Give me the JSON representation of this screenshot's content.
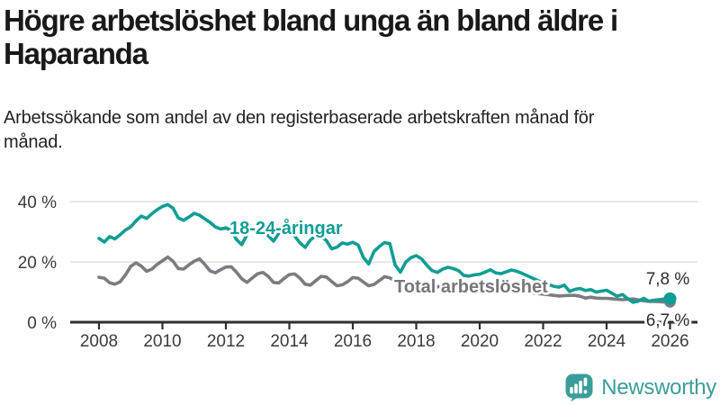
{
  "title": "Högre arbetslöshet bland unga än bland äldre i Haparanda",
  "subtitle": "Arbetssökande som andel av den registerbaserade arbetskraften månad för månad.",
  "footer": {
    "brand": "Newsworthy"
  },
  "colors": {
    "young_line": "#0f9d94",
    "total_line": "#7c7c80",
    "total_label": "#76767b",
    "axis": "#2f2f2f",
    "grid": "#dadada",
    "logo_teal": "#3b9d9a"
  },
  "chart_data": {
    "type": "line",
    "title": "Högre arbetslöshet bland unga än bland äldre i Haparanda",
    "xlabel": "",
    "ylabel": "",
    "x_start_year": 2008,
    "x_step_years": 0.1666667,
    "x_end_year": 2026,
    "xlim": [
      2007.1,
      2026.9
    ],
    "ylim": [
      0,
      42
    ],
    "grid": "horizontal",
    "x_tick_years": [
      2008,
      2010,
      2012,
      2014,
      2016,
      2018,
      2020,
      2022,
      2024,
      2026
    ],
    "x_tick_labels": [
      "2008",
      "2010",
      "2012",
      "2014",
      "2016",
      "2018",
      "2020",
      "2022",
      "2024",
      "2026"
    ],
    "y_ticks": [
      {
        "value": 0,
        "label": "0 %"
      },
      {
        "value": 20,
        "label": "20 %"
      },
      {
        "value": 40,
        "label": "40 %"
      }
    ],
    "series": [
      {
        "name": "18-24-åringar",
        "color": "#0f9d94",
        "end_label": "7,8 %",
        "end_value": 7.8,
        "values": [
          27.8,
          26.6,
          28.4,
          27.6,
          29.0,
          30.6,
          31.6,
          33.6,
          35.2,
          34.4,
          36.0,
          37.3,
          38.4,
          39.0,
          37.8,
          34.6,
          33.8,
          34.9,
          36.1,
          35.5,
          34.3,
          33.1,
          31.6,
          30.9,
          31.3,
          30.4,
          27.4,
          25.7,
          29.0,
          31.2,
          32.2,
          30.6,
          28.7,
          26.9,
          29.5,
          30.7,
          30.0,
          28.6,
          26.3,
          24.8,
          27.3,
          28.7,
          28.4,
          27.1,
          24.3,
          24.9,
          26.3,
          25.9,
          26.5,
          25.6,
          21.5,
          19.3,
          23.4,
          25.1,
          26.4,
          26.1,
          19.0,
          16.6,
          19.9,
          21.4,
          22.1,
          21.0,
          18.9,
          17.1,
          16.5,
          17.6,
          18.2,
          17.8,
          17.1,
          15.5,
          15.3,
          15.7,
          15.9,
          16.6,
          17.4,
          16.4,
          16.1,
          16.7,
          17.3,
          16.9,
          16.2,
          15.4,
          14.6,
          13.8,
          13.1,
          12.5,
          11.9,
          11.6,
          12.3,
          10.2,
          10.9,
          11.2,
          10.5,
          10.8,
          10.0,
          10.3,
          10.6,
          9.6,
          8.6,
          9.2,
          7.8,
          6.6,
          7.0,
          7.9,
          7.0,
          7.3,
          7.5,
          7.7,
          7.8
        ]
      },
      {
        "name": "Total arbetslöshet",
        "color": "#7c7c80",
        "end_label": "6,7 %",
        "end_value": 6.7,
        "values": [
          14.9,
          14.6,
          13.1,
          12.6,
          13.4,
          15.7,
          18.5,
          19.7,
          18.6,
          16.9,
          17.6,
          19.2,
          20.4,
          21.6,
          20.2,
          17.8,
          17.6,
          19.0,
          20.2,
          21.0,
          19.2,
          17.0,
          16.4,
          17.4,
          18.3,
          18.4,
          16.6,
          14.4,
          13.2,
          14.7,
          16.1,
          16.5,
          15.2,
          13.2,
          13.0,
          14.5,
          15.8,
          16.0,
          14.6,
          12.6,
          12.3,
          13.8,
          15.2,
          15.0,
          13.5,
          12.1,
          12.4,
          13.4,
          14.8,
          14.6,
          13.3,
          12.1,
          12.5,
          13.8,
          15.1,
          14.7,
          13.8,
          13.1,
          12.9,
          13.2,
          13.4,
          12.8,
          12.2,
          11.5,
          11.7,
          12.2,
          12.4,
          12.0,
          11.5,
          10.9,
          10.8,
          11.1,
          10.9,
          10.6,
          11.0,
          10.8,
          10.7,
          10.9,
          10.5,
          10.2,
          10.0,
          9.8,
          9.7,
          9.5,
          9.3,
          9.1,
          8.9,
          8.7,
          8.8,
          8.9,
          8.9,
          8.6,
          8.0,
          8.3,
          8.0,
          7.9,
          7.9,
          7.8,
          7.6,
          7.5,
          7.6,
          7.7,
          7.4,
          7.1,
          6.9,
          6.9,
          6.8,
          6.7,
          6.7
        ]
      }
    ]
  }
}
